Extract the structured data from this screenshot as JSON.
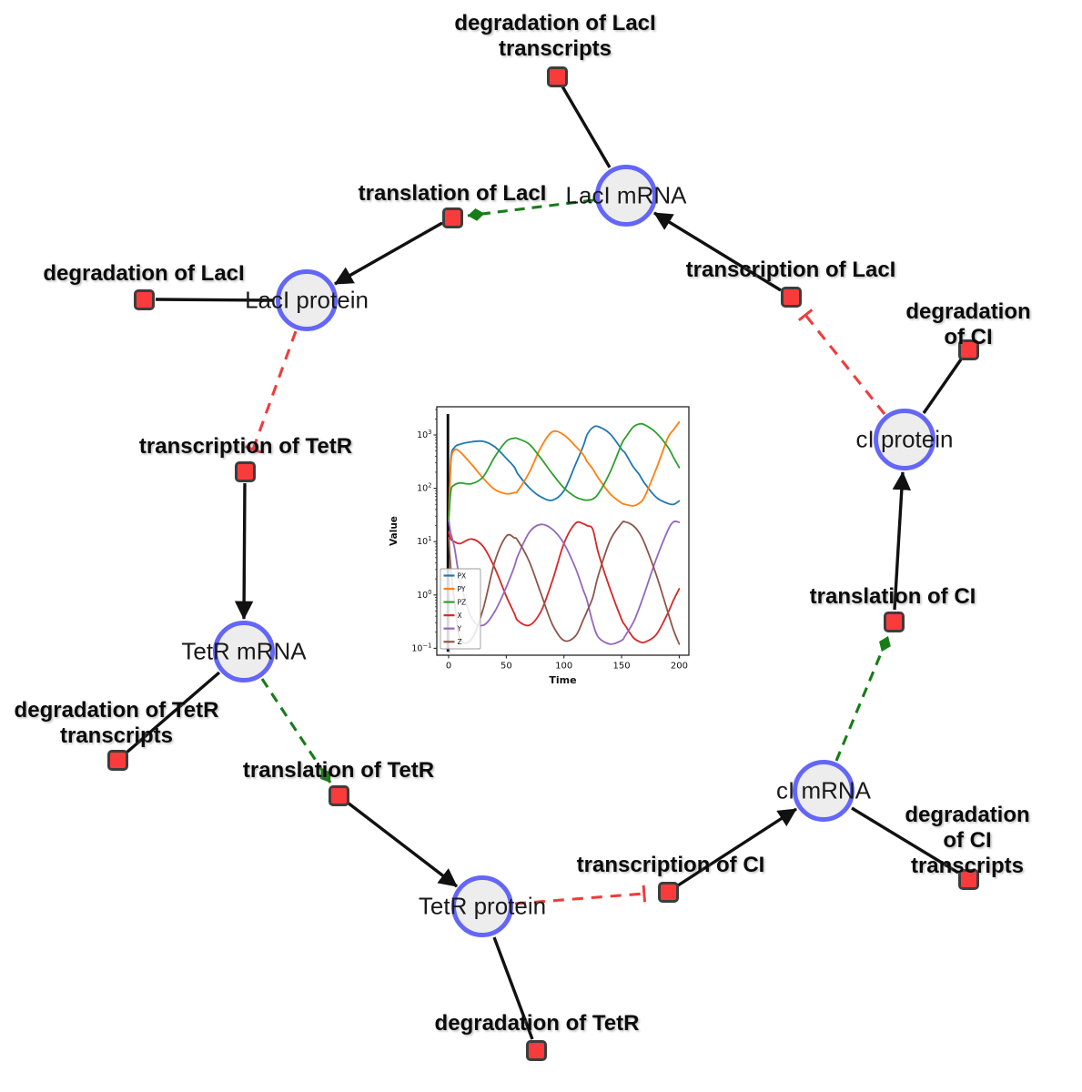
{
  "diagram": {
    "species": [
      {
        "id": "laci-mrna",
        "label": "LacI mRNA"
      },
      {
        "id": "laci-protein",
        "label": "LacI protein"
      },
      {
        "id": "ci-protein",
        "label": "cI protein"
      },
      {
        "id": "tetr-mrna",
        "label": "TetR mRNA"
      },
      {
        "id": "ci-mrna",
        "label": "cI mRNA"
      },
      {
        "id": "tetr-protein",
        "label": "TetR protein"
      }
    ],
    "reactions": [
      {
        "id": "degradation-laci-transcripts",
        "label": "degradation of LacI\ntranscripts"
      },
      {
        "id": "translation-laci",
        "label": "translation of LacI"
      },
      {
        "id": "degradation-laci",
        "label": "degradation of LacI"
      },
      {
        "id": "transcription-laci",
        "label": "transcription of LacI"
      },
      {
        "id": "degradation-ci",
        "label": "degradation of CI"
      },
      {
        "id": "transcription-tetr",
        "label": "transcription of TetR"
      },
      {
        "id": "translation-ci",
        "label": "translation of CI"
      },
      {
        "id": "degradation-tetr-transcripts",
        "label": "degradation of TetR\ntranscripts"
      },
      {
        "id": "translation-tetr",
        "label": "translation of TetR"
      },
      {
        "id": "degradation-ci-transcripts",
        "label": "degradation of CI\ntranscripts"
      },
      {
        "id": "transcription-ci",
        "label": "transcription of CI"
      },
      {
        "id": "degradation-tetr",
        "label": "degradation of TetR"
      }
    ],
    "colors": {
      "species_fill": "#ededed",
      "species_border": "#6366f8",
      "reaction_fill": "#f93b3b",
      "reaction_border": "#3d3d3d",
      "edge_black": "#111111",
      "activation_green": "#167d16",
      "inhibition_red": "#f23b3b"
    }
  },
  "chart_data": {
    "type": "line",
    "title": "",
    "xlabel": "Time",
    "ylabel": "Value",
    "x_ticks": [
      0,
      50,
      100,
      150,
      200
    ],
    "y_scale": "log",
    "y_tick_exponents": [
      3,
      2,
      1,
      0,
      -1
    ],
    "xlim": [
      -10,
      208
    ],
    "ylim": [
      0.062,
      3400
    ],
    "grid": false,
    "legend_position": "lower left",
    "t0_marker": true,
    "x": [
      0,
      2,
      5,
      10,
      20,
      30,
      40,
      50,
      57,
      60,
      70,
      80,
      90,
      100,
      110,
      117,
      120,
      125,
      130,
      140,
      150,
      153,
      160,
      165,
      170,
      180,
      190,
      195,
      200
    ],
    "series": [
      {
        "name": "PX",
        "color": "#1f77b4",
        "values": [
          25,
          350,
          580,
          670,
          745,
          760,
          600,
          365,
          250,
          187,
          102,
          69,
          60,
          90,
          280,
          640,
          1000,
          1380,
          1430,
          1050,
          540,
          460,
          255,
          185,
          124,
          68,
          52,
          50,
          58
        ]
      },
      {
        "name": "PY",
        "color": "#ff7f0e",
        "values": [
          25,
          300,
          520,
          480,
          280,
          154,
          95,
          79,
          83,
          90,
          200,
          585,
          1150,
          1000,
          620,
          420,
          320,
          230,
          154,
          79,
          53,
          50,
          47,
          52,
          70,
          230,
          870,
          1250,
          1750
        ]
      },
      {
        "name": "PZ",
        "color": "#2ca02c",
        "values": [
          25,
          90,
          115,
          126,
          122,
          165,
          390,
          760,
          870,
          850,
          670,
          365,
          187,
          102,
          69,
          61,
          60,
          63,
          80,
          200,
          670,
          870,
          1400,
          1600,
          1550,
          1100,
          600,
          380,
          245
        ]
      },
      {
        "name": "X",
        "color": "#d62728",
        "values": [
          15,
          11,
          10,
          9.2,
          11.2,
          8.1,
          3.2,
          0.95,
          0.45,
          0.33,
          0.27,
          0.49,
          1.85,
          9.2,
          22,
          21.5,
          20,
          17,
          6,
          1.3,
          0.35,
          0.27,
          0.16,
          0.135,
          0.13,
          0.18,
          0.45,
          0.8,
          1.3
        ]
      },
      {
        "name": "Y",
        "color": "#9467bd",
        "values": [
          25,
          14,
          8,
          1.85,
          0.37,
          0.27,
          0.49,
          1.4,
          3.4,
          5.4,
          15,
          21,
          17,
          9.2,
          3.2,
          1.2,
          0.8,
          0.3,
          0.16,
          0.12,
          0.14,
          0.17,
          0.3,
          0.55,
          1.1,
          4.7,
          16,
          23.5,
          23
        ]
      },
      {
        "name": "Z",
        "color": "#8c564b",
        "values": [
          12,
          3,
          0.8,
          0.15,
          0.15,
          0.55,
          4.2,
          12.6,
          11.8,
          10.5,
          4.2,
          1.07,
          0.28,
          0.14,
          0.17,
          0.35,
          0.49,
          0.9,
          2.4,
          10.5,
          22,
          23.5,
          20,
          15,
          9.2,
          2.4,
          0.49,
          0.22,
          0.12
        ]
      }
    ]
  }
}
